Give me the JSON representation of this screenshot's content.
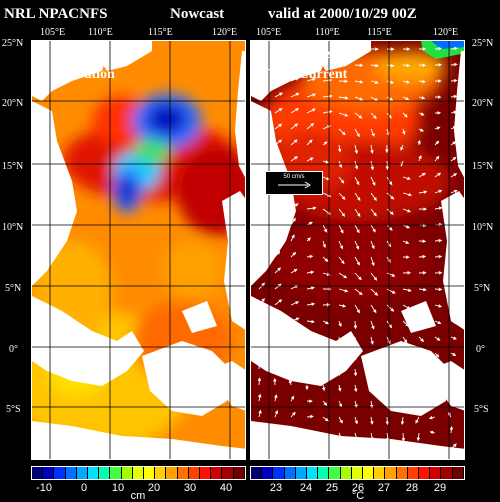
{
  "header": {
    "left": "NRL NPACNFS",
    "middle": "Nowcast",
    "right": "valid at 2000/10/29 00Z"
  },
  "longitudes": [
    "105°E",
    "110°E",
    "115°E",
    "120°E"
  ],
  "latitudes_left": [
    "25°N",
    "20°N",
    "15°N",
    "10°N",
    "5°N",
    "0°",
    "5°S"
  ],
  "latitudes_right": [
    "25°N",
    "20°N",
    "15°N",
    "10°N",
    "5°N",
    "0°",
    "5°S"
  ],
  "panel_left": {
    "title_line1": "Surface",
    "title_line2": "Elevation"
  },
  "panel_right": {
    "title_line1": "Surface",
    "title_line2": "Temp/Current",
    "ref_vector": "50 cm/s"
  },
  "colorbar_left": {
    "ticks": [
      "-10",
      "0",
      "10",
      "20",
      "30",
      "40"
    ],
    "unit": "cm"
  },
  "colorbar_right": {
    "ticks": [
      "23",
      "24",
      "25",
      "26",
      "27",
      "28",
      "29"
    ],
    "unit": "°C"
  },
  "colors": {
    "land": "#ffffff",
    "background": "#000000"
  }
}
